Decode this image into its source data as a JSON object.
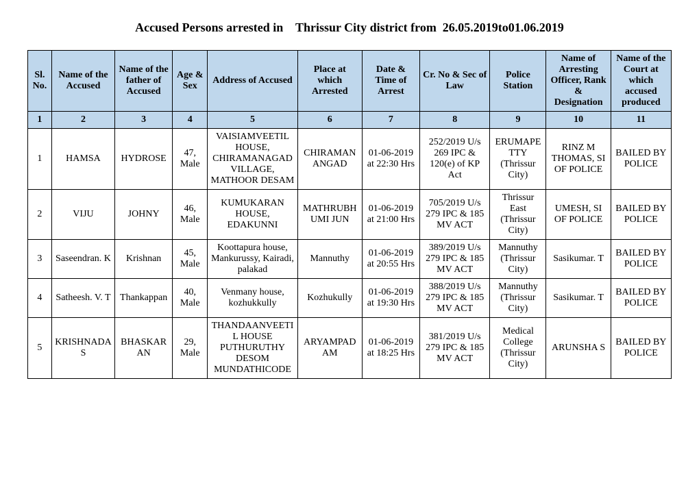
{
  "title": "Accused Persons arrested in    Thrissur City district from  26.05.2019to01.06.2019",
  "table": {
    "header_bg": "#bfd7ec",
    "border_color": "#000000",
    "font_family": "Times New Roman",
    "header_fontsize": 14,
    "body_fontsize": 14,
    "columns": [
      "Sl. No.",
      "Name of the Accused",
      "Name of the father of Accused",
      "Age & Sex",
      "Address of Accused",
      "Place at which Arrested",
      "Date & Time of Arrest",
      "Cr. No & Sec of Law",
      "Police Station",
      "Name of Arresting Officer, Rank & Designation",
      "Name of the Court at which accused produced"
    ],
    "number_row": [
      "1",
      "2",
      "3",
      "4",
      "5",
      "6",
      "7",
      "8",
      "9",
      "10",
      "11"
    ],
    "rows": [
      {
        "sl": "1",
        "accused": "HAMSA",
        "father": "HYDROSE",
        "age_sex": "47, Male",
        "address": "VAISIAMVEETIL HOUSE, CHIRAMANAGAD VILLAGE, MATHOOR DESAM",
        "place": "CHIRAMAN ANGAD",
        "datetime": "01-06-2019 at 22:30 Hrs",
        "crno": "252/2019 U/s 269 IPC & 120(e) of KP Act",
        "station": "ERUMAPETTY (Thrissur City)",
        "officer": "RINZ M THOMAS, SI OF POLICE",
        "court": "BAILED BY POLICE"
      },
      {
        "sl": "2",
        "accused": "VIJU",
        "father": "JOHNY",
        "age_sex": "46, Male",
        "address": "KUMUKARAN HOUSE, EDAKUNNI",
        "place": "MATHRUBHUMI JUN",
        "datetime": "01-06-2019 at 21:00 Hrs",
        "crno": "705/2019 U/s 279 IPC & 185 MV ACT",
        "station": "Thrissur East (Thrissur City)",
        "officer": "UMESH, SI OF POLICE",
        "court": "BAILED BY POLICE"
      },
      {
        "sl": "3",
        "accused": "Saseendran. K",
        "father": "Krishnan",
        "age_sex": "45, Male",
        "address": "Koottapura house, Mankurussy, Kairadi, palakad",
        "place": "Mannuthy",
        "datetime": "01-06-2019 at 20:55 Hrs",
        "crno": "389/2019 U/s 279 IPC & 185 MV ACT",
        "station": "Mannuthy (Thrissur City)",
        "officer": "Sasikumar. T",
        "court": "BAILED BY POLICE"
      },
      {
        "sl": "4",
        "accused": "Satheesh. V. T",
        "father": "Thankappan",
        "age_sex": "40, Male",
        "address": "Venmany house, kozhukkully",
        "place": "Kozhukully",
        "datetime": "01-06-2019 at 19:30 Hrs",
        "crno": "388/2019 U/s 279 IPC & 185 MV ACT",
        "station": "Mannuthy (Thrissur City)",
        "officer": "Sasikumar. T",
        "court": "BAILED BY POLICE"
      },
      {
        "sl": "5",
        "accused": "KRISHNADAS",
        "father": "BHASKARAN",
        "age_sex": "29, Male",
        "address": "THANDAANVEETIL HOUSE PUTHURUTHY DESOM MUNDATHICODE",
        "place": "ARYAMPADAM",
        "datetime": "01-06-2019 at 18:25 Hrs",
        "crno": "381/2019 U/s 279 IPC & 185 MV ACT",
        "station": "Medical College (Thrissur City)",
        "officer": "ARUNSHA S",
        "court": "BAILED BY POLICE"
      }
    ]
  }
}
